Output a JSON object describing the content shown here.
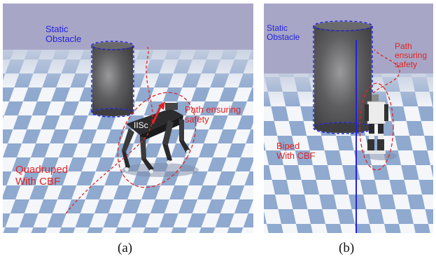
{
  "panel_a": {
    "static_label_line1": "Static",
    "static_label_line2": "Obstacle",
    "path_label_line1": "Path ensuring",
    "path_label_line2": "safety",
    "robot_label_line1": "Quadruped",
    "robot_label_line2": "With CBF",
    "robot_logo_text": "IISc",
    "caption": "(a)"
  },
  "panel_b": {
    "static_label_line1": "Static",
    "static_label_line2": "Obstacle",
    "path_label_line1": "Path",
    "path_label_line2": "ensuring",
    "path_label_line3": "safety",
    "robot_label_line1": "Biped",
    "robot_label_line2": "With CBF",
    "caption": "(b)"
  },
  "colors": {
    "sky": "#a8a6c6",
    "floor_blue": "#8fa9cf",
    "floor_white": "#f4f6fa",
    "obstacle": "#5a5a5c",
    "annotation_blue": "#2222dd",
    "annotation_red": "#e02424"
  }
}
